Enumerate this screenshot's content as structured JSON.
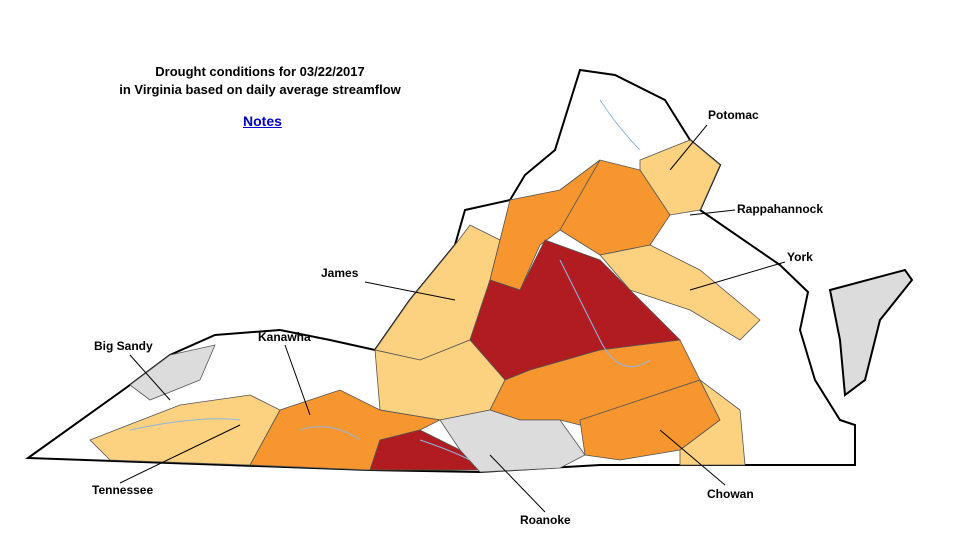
{
  "header": {
    "title_line_1": "Drought conditions for 03/22/2017",
    "title_line_2": "in Virginia based on daily average streamflow",
    "link": "Notes"
  },
  "basins": [
    {
      "label": "Potomac"
    },
    {
      "label": "Rappahannock"
    },
    {
      "label": "York"
    },
    {
      "label": "James"
    },
    {
      "label": "Big Sandy"
    },
    {
      "label": "Kanawha"
    },
    {
      "label": "Tennessee"
    },
    {
      "label": "Chowan"
    },
    {
      "label": "Roanoke"
    }
  ]
}
